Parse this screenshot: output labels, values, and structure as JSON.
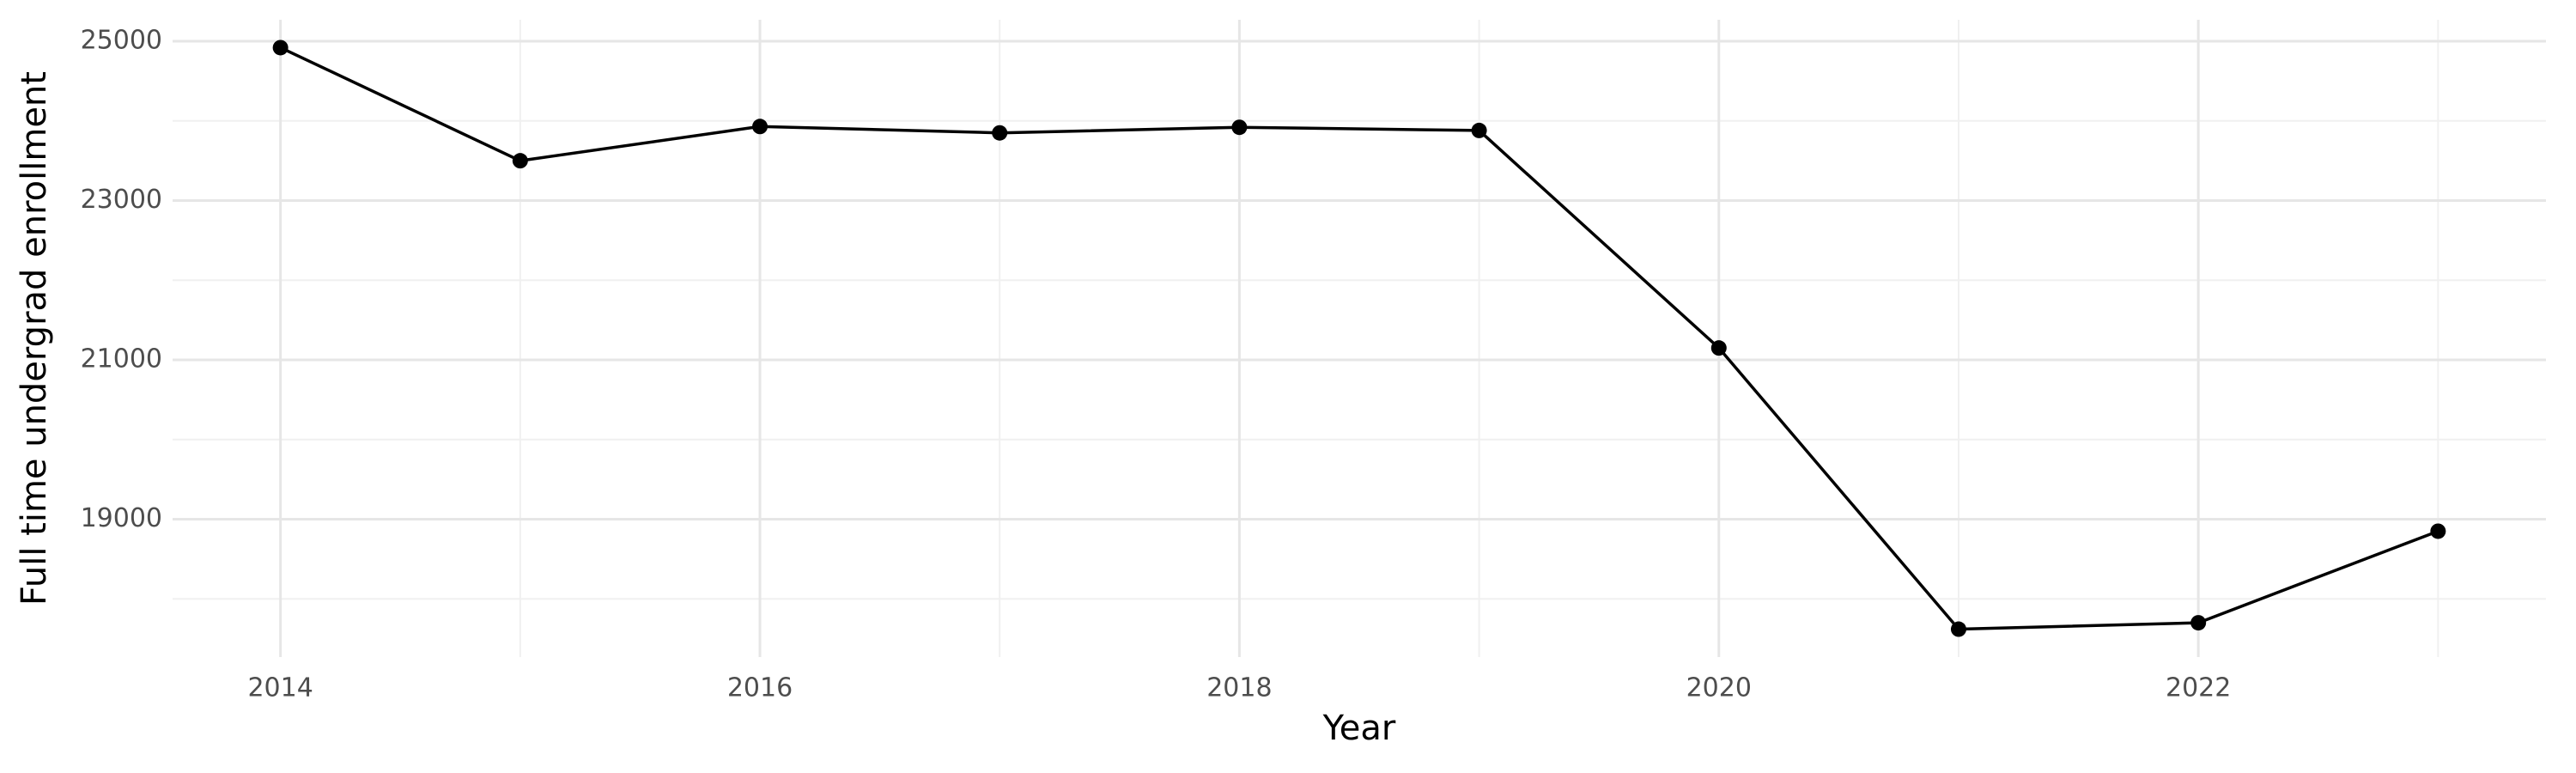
{
  "chart_data": {
    "type": "line",
    "x_label": "Year",
    "y_label": "Full time undergrad enrollment",
    "x": [
      2014,
      2015,
      2016,
      2017,
      2018,
      2019,
      2020,
      2021,
      2022,
      2023
    ],
    "values": [
      24920,
      23500,
      23930,
      23850,
      23920,
      23880,
      21150,
      17620,
      17700,
      18850
    ],
    "color": "#000000",
    "xlim": [
      2013.55,
      2023.45
    ],
    "xticks": [
      2014,
      2016,
      2018,
      2020,
      2022
    ],
    "ylim": [
      17270,
      25270
    ],
    "yticks": [
      19000,
      21000,
      23000,
      25000
    ],
    "grid": true
  }
}
